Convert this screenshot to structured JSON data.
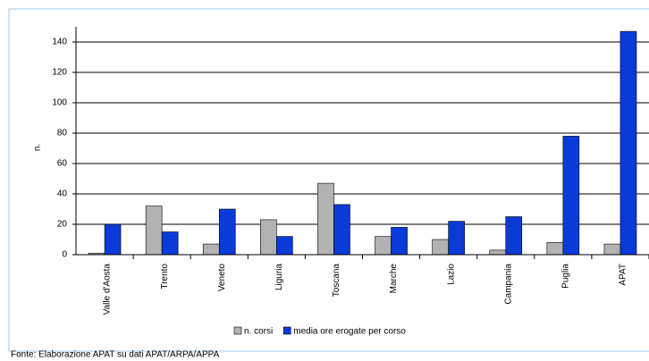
{
  "chart_data": {
    "type": "bar",
    "y_label": "n.",
    "categories": [
      "Valle d'Aosta",
      "Trento",
      "Veneto",
      "Liguria",
      "Toscana",
      "Marche",
      "Lazio",
      "Campania",
      "Puglia",
      "APAT"
    ],
    "series": [
      {
        "name": "n. corsi",
        "color": "#b2b2b2",
        "values": [
          1,
          32,
          7,
          23,
          47,
          12,
          10,
          3,
          8,
          7
        ]
      },
      {
        "name": "media ore erogate per corso",
        "color": "#0a3ad8",
        "values": [
          20,
          15,
          30,
          12,
          33,
          18,
          22,
          25,
          78,
          147
        ]
      }
    ],
    "ylim": [
      0,
      150
    ],
    "yticks": [
      0,
      20,
      40,
      60,
      80,
      100,
      120,
      140
    ],
    "grid": true,
    "source": "Fonte: Elaborazione APAT su dati APAT/ARPA/APPA"
  }
}
